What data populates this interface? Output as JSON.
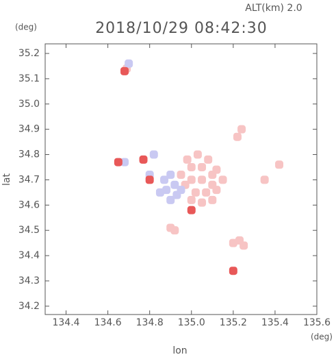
{
  "chart_data": {
    "type": "scatter",
    "title": "2018/10/29 08:42:30",
    "subtitle": "ALT(km) 2.0",
    "y_unit": "(deg)",
    "x_unit": "(deg)",
    "x_label": "lon",
    "y_label": "lat",
    "xlim": [
      134.3,
      135.6
    ],
    "ylim": [
      34.167,
      35.238
    ],
    "xticks": [
      134.4,
      134.6,
      134.8,
      {
        "value": 135,
        "label": "135.0"
      },
      135.2,
      135.4,
      135.6
    ],
    "yticks": [
      34.2,
      34.3,
      34.4,
      34.5,
      34.6,
      34.7,
      34.8,
      34.9,
      {
        "value": 35,
        "label": "35.0"
      },
      35.1,
      35.2
    ],
    "series": [
      {
        "color": "#f7c4c4",
        "x": [
          135.0,
          135.05,
          135.1,
          135.0,
          135.05,
          135.1,
          134.97,
          135.02,
          135.07,
          135.12,
          135.0,
          135.05,
          135.1,
          134.98,
          135.03,
          135.08,
          135.15,
          134.95,
          135.12,
          135.2,
          135.23,
          135.25,
          135.42,
          135.35,
          135.22,
          135.24,
          134.69,
          134.9,
          134.92
        ],
        "values": [
          34.75,
          34.75,
          34.72,
          34.7,
          34.7,
          34.68,
          34.68,
          34.65,
          34.65,
          34.66,
          34.62,
          34.61,
          34.62,
          34.78,
          34.8,
          34.78,
          34.7,
          34.72,
          34.74,
          34.45,
          34.46,
          34.44,
          34.76,
          34.7,
          34.87,
          34.9,
          35.14,
          34.51,
          34.5
        ]
      },
      {
        "color": "#c9c9f2",
        "x": [
          134.9,
          134.92,
          134.88,
          134.93,
          134.87,
          134.9,
          134.85,
          134.95,
          134.8,
          134.82,
          134.68,
          134.7
        ],
        "values": [
          34.72,
          34.68,
          34.66,
          34.64,
          34.7,
          34.62,
          34.65,
          34.66,
          34.72,
          34.8,
          34.77,
          35.16
        ]
      },
      {
        "color": "#e85858",
        "x": [
          134.77,
          134.8,
          135.0,
          135.2,
          134.65,
          134.68
        ],
        "values": [
          34.78,
          34.7,
          34.58,
          34.34,
          34.77,
          35.13
        ]
      }
    ]
  }
}
